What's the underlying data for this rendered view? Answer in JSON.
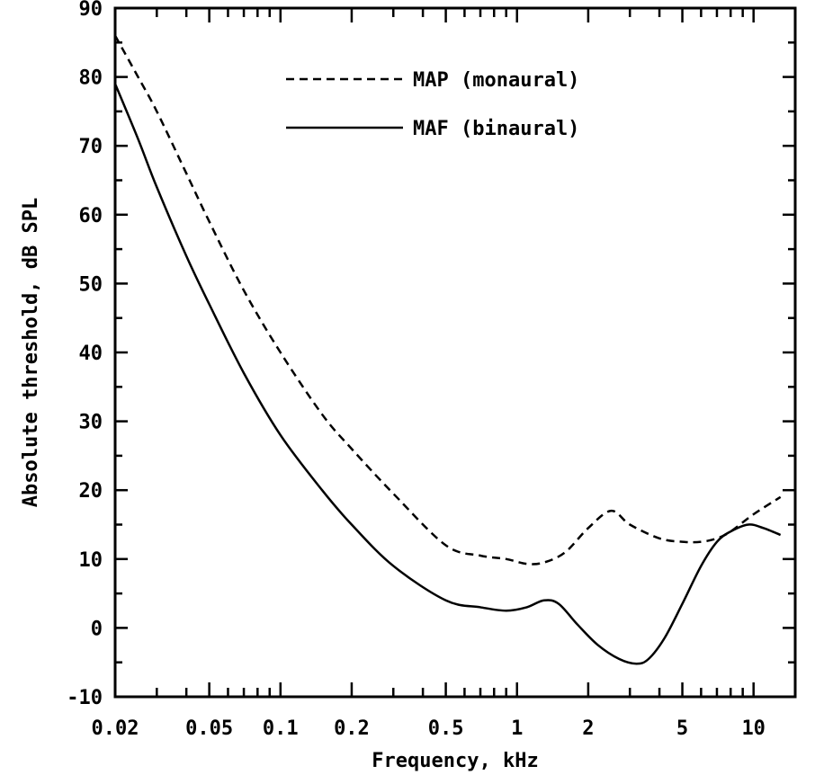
{
  "chart_data": {
    "type": "line",
    "xlabel": "Frequency, kHz",
    "ylabel": "Absolute threshold, dB SPL",
    "xscale": "log",
    "xlim": [
      0.02,
      15
    ],
    "ylim": [
      -10,
      90
    ],
    "grid": false,
    "legend_position": "top-center",
    "x_tick_labels": [
      "0.02",
      "0.05",
      "0.1",
      "0.2",
      "0.5",
      "1",
      "2",
      "5",
      "10"
    ],
    "x_tick_values": [
      0.02,
      0.05,
      0.1,
      0.2,
      0.5,
      1,
      2,
      5,
      10
    ],
    "y_tick_labels": [
      "-10",
      "0",
      "10",
      "20",
      "30",
      "40",
      "50",
      "60",
      "70",
      "80",
      "90"
    ],
    "y_tick_values": [
      -10,
      0,
      10,
      20,
      30,
      40,
      50,
      60,
      70,
      80,
      90
    ],
    "series": [
      {
        "name": "MAP (monaural)",
        "style": "dashed",
        "color": "#000000",
        "x": [
          0.02,
          0.025,
          0.03,
          0.04,
          0.05,
          0.07,
          0.1,
          0.15,
          0.2,
          0.3,
          0.5,
          0.7,
          0.9,
          1.1,
          1.3,
          1.6,
          2.0,
          2.5,
          3.0,
          4.0,
          5.0,
          6.0,
          7.0,
          8.0,
          10.0,
          13.0
        ],
        "y": [
          86,
          80,
          75,
          66,
          59,
          49,
          40,
          31,
          26,
          19.5,
          12,
          10.5,
          10,
          9.3,
          9.5,
          11,
          14.5,
          17,
          15,
          13,
          12.5,
          12.5,
          13,
          14,
          16.5,
          19
        ]
      },
      {
        "name": "MAF (binaural)",
        "style": "solid",
        "color": "#000000",
        "x": [
          0.02,
          0.025,
          0.03,
          0.04,
          0.05,
          0.07,
          0.1,
          0.15,
          0.2,
          0.3,
          0.5,
          0.7,
          0.9,
          1.1,
          1.3,
          1.5,
          1.8,
          2.2,
          2.7,
          3.2,
          3.6,
          4.2,
          5.0,
          6.0,
          7.0,
          8.0,
          9.5,
          11.0,
          13.0
        ],
        "y": [
          79,
          71,
          64,
          54,
          47,
          37,
          28,
          20,
          15,
          9,
          4,
          3,
          2.5,
          3,
          4,
          3.5,
          0.5,
          -2.5,
          -4.5,
          -5.2,
          -4.5,
          -1.5,
          3.5,
          9,
          12.5,
          14,
          15,
          14.5,
          13.5
        ]
      }
    ]
  }
}
